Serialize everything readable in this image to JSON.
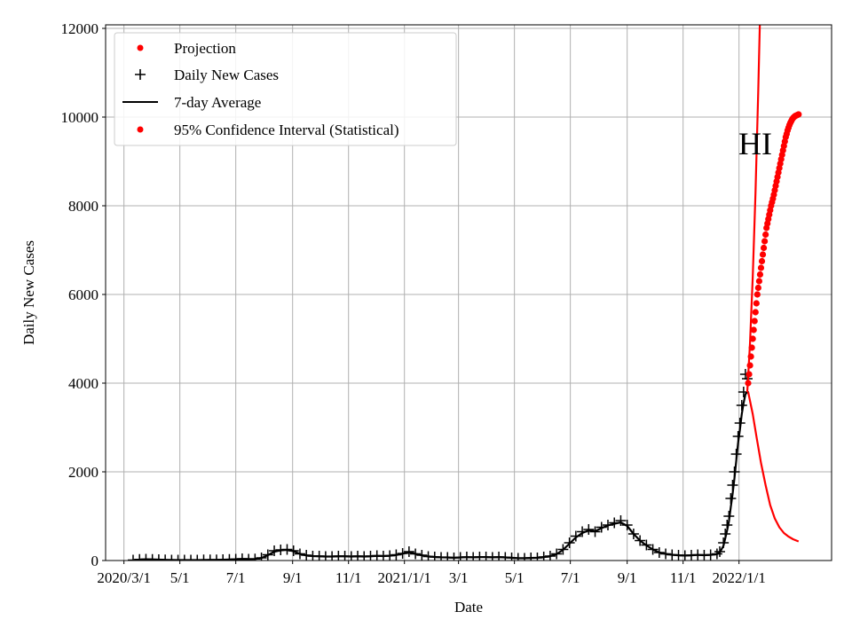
{
  "chart_data": {
    "type": "line",
    "title": "",
    "annotation": "HI",
    "xlabel": "Date",
    "ylabel": "Daily New Cases",
    "x_origin_date": "2020/3/1",
    "x_units": "days since 2020/3/1",
    "xlim": [
      -20,
      772
    ],
    "ylim": [
      0,
      12080
    ],
    "grid": true,
    "legend_position": "top-left",
    "x_ticks": [
      {
        "day": 0,
        "label": "2020/3/1"
      },
      {
        "day": 61,
        "label": "5/1"
      },
      {
        "day": 122,
        "label": "7/1"
      },
      {
        "day": 184,
        "label": "9/1"
      },
      {
        "day": 245,
        "label": "11/1"
      },
      {
        "day": 306,
        "label": "2021/1/1"
      },
      {
        "day": 365,
        "label": "3/1"
      },
      {
        "day": 426,
        "label": "5/1"
      },
      {
        "day": 487,
        "label": "7/1"
      },
      {
        "day": 549,
        "label": "9/1"
      },
      {
        "day": 610,
        "label": "11/1"
      },
      {
        "day": 671,
        "label": "2022/1/1"
      }
    ],
    "y_ticks": [
      0,
      2000,
      4000,
      6000,
      8000,
      10000,
      12000
    ],
    "legend": [
      "Projection",
      "Daily New Cases",
      "7-day Average",
      "95% Confidence Interval (Statistical)"
    ],
    "series": [
      {
        "name": "Daily New Cases",
        "color": "#000000",
        "marker": "plus",
        "x": [
          10,
          17,
          24,
          31,
          38,
          45,
          52,
          59,
          66,
          73,
          80,
          87,
          94,
          101,
          108,
          115,
          122,
          129,
          136,
          143,
          150,
          157,
          164,
          171,
          178,
          185,
          192,
          199,
          206,
          213,
          220,
          227,
          234,
          241,
          248,
          255,
          262,
          269,
          276,
          283,
          290,
          297,
          304,
          311,
          318,
          325,
          332,
          339,
          346,
          353,
          360,
          367,
          374,
          381,
          388,
          395,
          402,
          409,
          416,
          423,
          430,
          437,
          444,
          451,
          458,
          465,
          472,
          479,
          486,
          493,
          500,
          507,
          514,
          521,
          528,
          535,
          542,
          549,
          556,
          563,
          570,
          577,
          584,
          591,
          598,
          605,
          612,
          619,
          626,
          633,
          640,
          647,
          650,
          654,
          656,
          658,
          660,
          662,
          664,
          666,
          668,
          670,
          672,
          674,
          676,
          678,
          680
        ],
        "y": [
          10,
          25,
          30,
          25,
          20,
          15,
          10,
          10,
          10,
          10,
          10,
          15,
          15,
          15,
          20,
          25,
          30,
          40,
          30,
          35,
          60,
          130,
          220,
          240,
          250,
          220,
          150,
          120,
          100,
          100,
          90,
          90,
          100,
          100,
          90,
          100,
          90,
          100,
          110,
          100,
          110,
          130,
          160,
          200,
          150,
          120,
          90,
          80,
          70,
          70,
          60,
          70,
          80,
          70,
          80,
          80,
          70,
          80,
          70,
          60,
          50,
          50,
          60,
          60,
          80,
          100,
          150,
          250,
          400,
          550,
          650,
          700,
          650,
          750,
          800,
          850,
          900,
          800,
          600,
          450,
          350,
          250,
          180,
          150,
          130,
          120,
          110,
          120,
          130,
          120,
          130,
          150,
          200,
          400,
          600,
          800,
          1000,
          1400,
          1700,
          2000,
          2400,
          2800,
          3100,
          3500,
          3800,
          4200,
          4100
        ]
      },
      {
        "name": "7-day Average",
        "color": "#000000",
        "x": [
          10,
          17,
          24,
          31,
          38,
          45,
          52,
          59,
          66,
          73,
          80,
          87,
          94,
          101,
          108,
          115,
          122,
          129,
          136,
          143,
          150,
          157,
          164,
          171,
          178,
          185,
          192,
          199,
          206,
          213,
          220,
          227,
          234,
          241,
          248,
          255,
          262,
          269,
          276,
          283,
          290,
          297,
          304,
          311,
          318,
          325,
          332,
          339,
          346,
          353,
          360,
          367,
          374,
          381,
          388,
          395,
          402,
          409,
          416,
          423,
          430,
          437,
          444,
          451,
          458,
          465,
          472,
          479,
          486,
          493,
          500,
          507,
          514,
          521,
          528,
          535,
          542,
          549,
          556,
          563,
          570,
          577,
          584,
          591,
          598,
          605,
          612,
          619,
          626,
          633,
          640,
          647,
          650,
          654,
          656,
          658,
          660,
          662,
          664,
          666,
          668,
          670,
          672,
          674,
          676,
          678,
          680
        ],
        "y": [
          5,
          20,
          28,
          25,
          20,
          15,
          12,
          10,
          10,
          10,
          10,
          13,
          15,
          15,
          18,
          23,
          28,
          35,
          32,
          35,
          55,
          120,
          200,
          230,
          240,
          210,
          150,
          115,
          100,
          95,
          90,
          90,
          95,
          95,
          90,
          95,
          90,
          95,
          105,
          100,
          108,
          125,
          155,
          185,
          150,
          118,
          92,
          80,
          72,
          70,
          63,
          70,
          76,
          72,
          78,
          78,
          72,
          78,
          70,
          62,
          52,
          52,
          58,
          62,
          78,
          98,
          145,
          240,
          380,
          520,
          620,
          680,
          660,
          730,
          790,
          830,
          860,
          780,
          600,
          450,
          340,
          250,
          180,
          150,
          130,
          118,
          112,
          118,
          126,
          120,
          128,
          145,
          180,
          330,
          500,
          680,
          880,
          1200,
          1500,
          1850,
          2250,
          2650,
          2950,
          3300,
          3550,
          3750,
          3800
        ]
      },
      {
        "name": "Projection",
        "color": "#ff0000",
        "x": [
          680,
          683,
          686,
          689,
          692,
          695
        ],
        "y": [
          3800,
          4900,
          6400,
          8300,
          10600,
          13200
        ]
      },
      {
        "name": "95% Confidence Interval (Statistical) - upper",
        "color": "#ff0000",
        "marker": "dot",
        "x": [
          681,
          682,
          683,
          684,
          685,
          686,
          687,
          688,
          689,
          690,
          691,
          692,
          693,
          694,
          695,
          696,
          697,
          698,
          699,
          700,
          701,
          702,
          703,
          704,
          705,
          706,
          707,
          708,
          709,
          710,
          711,
          712,
          713,
          714,
          715,
          716,
          717,
          718,
          719,
          720,
          721,
          722,
          723,
          724,
          725,
          726,
          727,
          728,
          729,
          730,
          731,
          732,
          733,
          734,
          735,
          736
        ],
        "y": [
          4000,
          4200,
          4400,
          4600,
          4800,
          5000,
          5200,
          5400,
          5600,
          5800,
          6000,
          6150,
          6300,
          6450,
          6600,
          6750,
          6900,
          7050,
          7200,
          7350,
          7500,
          7600,
          7700,
          7800,
          7900,
          8000,
          8080,
          8160,
          8250,
          8350,
          8450,
          8550,
          8650,
          8750,
          8850,
          8950,
          9050,
          9150,
          9250,
          9350,
          9450,
          9550,
          9620,
          9700,
          9760,
          9820,
          9870,
          9910,
          9950,
          9980,
          10000,
          10020,
          10030,
          10040,
          10050,
          10060
        ]
      },
      {
        "name": "95% Confidence Interval (Statistical) - lower",
        "color": "#ff0000",
        "x": [
          681,
          686,
          690,
          695,
          700,
          705,
          710,
          715,
          720,
          725,
          730,
          736
        ],
        "y": [
          3800,
          3300,
          2800,
          2200,
          1700,
          1250,
          950,
          750,
          620,
          540,
          480,
          430
        ]
      }
    ]
  }
}
